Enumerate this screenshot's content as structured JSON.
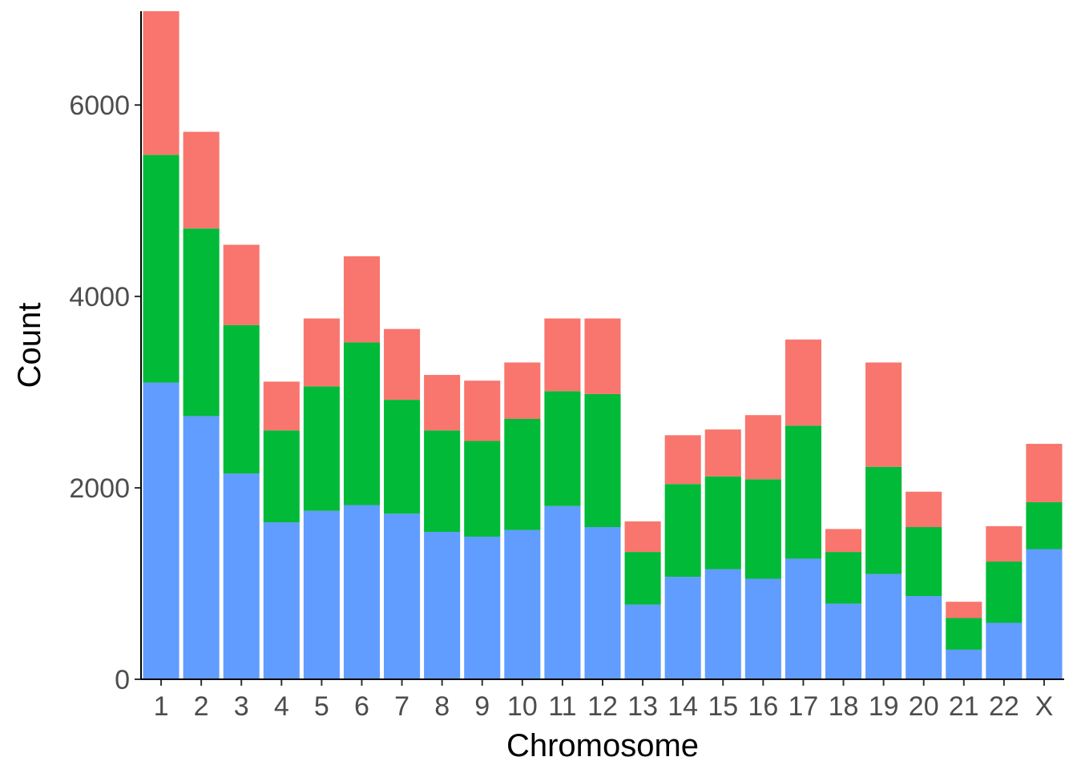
{
  "chart_data": {
    "type": "bar",
    "stacked": true,
    "title": "",
    "xlabel": "Chromosome",
    "ylabel": "Count",
    "ylim": [
      0,
      6980
    ],
    "yticks": [
      0,
      2000,
      4000,
      6000
    ],
    "ytick_labels": [
      "0",
      "2000",
      "4000",
      "6000"
    ],
    "grid": false,
    "legend": "none",
    "categories": [
      "1",
      "2",
      "3",
      "4",
      "5",
      "6",
      "7",
      "8",
      "9",
      "10",
      "11",
      "12",
      "13",
      "14",
      "15",
      "16",
      "17",
      "18",
      "19",
      "20",
      "21",
      "22",
      "X"
    ],
    "series": [
      {
        "color": "#619CFF",
        "values": [
          3100,
          2750,
          2150,
          1640,
          1760,
          1820,
          1730,
          1540,
          1490,
          1560,
          1810,
          1590,
          780,
          1070,
          1150,
          1050,
          1260,
          790,
          1100,
          870,
          310,
          590,
          1360
        ]
      },
      {
        "color": "#00BA38",
        "values": [
          2380,
          1960,
          1550,
          960,
          1300,
          1700,
          1190,
          1060,
          1000,
          1160,
          1200,
          1390,
          550,
          970,
          970,
          1040,
          1390,
          540,
          1120,
          720,
          330,
          640,
          490
        ]
      },
      {
        "color": "#F8766D",
        "values": [
          1500,
          1010,
          840,
          510,
          710,
          900,
          740,
          580,
          630,
          590,
          760,
          790,
          320,
          510,
          490,
          670,
          900,
          240,
          1090,
          370,
          170,
          370,
          610
        ]
      }
    ]
  }
}
